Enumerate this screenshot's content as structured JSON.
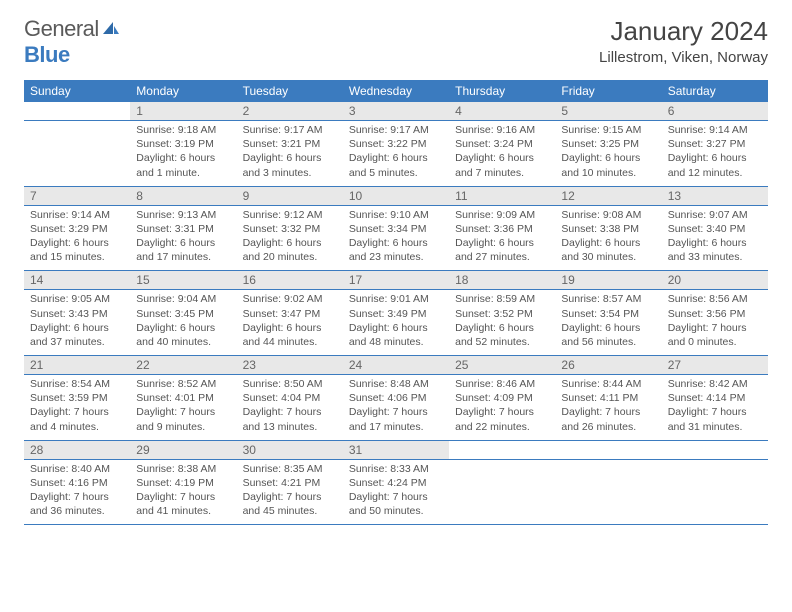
{
  "logo": {
    "text1": "General",
    "text2": "Blue"
  },
  "title": "January 2024",
  "location": "Lillestrom, Viken, Norway",
  "colors": {
    "header_bg": "#3b7bbf",
    "header_text": "#ffffff",
    "daynum_bg": "#e8e8e8",
    "daynum_text": "#666666",
    "body_text": "#555555",
    "rule": "#3b7bbf",
    "logo_gray": "#5a5a5a",
    "logo_blue": "#3b7bbf"
  },
  "weekdays": [
    "Sunday",
    "Monday",
    "Tuesday",
    "Wednesday",
    "Thursday",
    "Friday",
    "Saturday"
  ],
  "weeks": [
    {
      "nums": [
        "",
        "1",
        "2",
        "3",
        "4",
        "5",
        "6"
      ],
      "cells": [
        null,
        {
          "sunrise": "Sunrise: 9:18 AM",
          "sunset": "Sunset: 3:19 PM",
          "daylight": "Daylight: 6 hours and 1 minute."
        },
        {
          "sunrise": "Sunrise: 9:17 AM",
          "sunset": "Sunset: 3:21 PM",
          "daylight": "Daylight: 6 hours and 3 minutes."
        },
        {
          "sunrise": "Sunrise: 9:17 AM",
          "sunset": "Sunset: 3:22 PM",
          "daylight": "Daylight: 6 hours and 5 minutes."
        },
        {
          "sunrise": "Sunrise: 9:16 AM",
          "sunset": "Sunset: 3:24 PM",
          "daylight": "Daylight: 6 hours and 7 minutes."
        },
        {
          "sunrise": "Sunrise: 9:15 AM",
          "sunset": "Sunset: 3:25 PM",
          "daylight": "Daylight: 6 hours and 10 minutes."
        },
        {
          "sunrise": "Sunrise: 9:14 AM",
          "sunset": "Sunset: 3:27 PM",
          "daylight": "Daylight: 6 hours and 12 minutes."
        }
      ]
    },
    {
      "nums": [
        "7",
        "8",
        "9",
        "10",
        "11",
        "12",
        "13"
      ],
      "cells": [
        {
          "sunrise": "Sunrise: 9:14 AM",
          "sunset": "Sunset: 3:29 PM",
          "daylight": "Daylight: 6 hours and 15 minutes."
        },
        {
          "sunrise": "Sunrise: 9:13 AM",
          "sunset": "Sunset: 3:31 PM",
          "daylight": "Daylight: 6 hours and 17 minutes."
        },
        {
          "sunrise": "Sunrise: 9:12 AM",
          "sunset": "Sunset: 3:32 PM",
          "daylight": "Daylight: 6 hours and 20 minutes."
        },
        {
          "sunrise": "Sunrise: 9:10 AM",
          "sunset": "Sunset: 3:34 PM",
          "daylight": "Daylight: 6 hours and 23 minutes."
        },
        {
          "sunrise": "Sunrise: 9:09 AM",
          "sunset": "Sunset: 3:36 PM",
          "daylight": "Daylight: 6 hours and 27 minutes."
        },
        {
          "sunrise": "Sunrise: 9:08 AM",
          "sunset": "Sunset: 3:38 PM",
          "daylight": "Daylight: 6 hours and 30 minutes."
        },
        {
          "sunrise": "Sunrise: 9:07 AM",
          "sunset": "Sunset: 3:40 PM",
          "daylight": "Daylight: 6 hours and 33 minutes."
        }
      ]
    },
    {
      "nums": [
        "14",
        "15",
        "16",
        "17",
        "18",
        "19",
        "20"
      ],
      "cells": [
        {
          "sunrise": "Sunrise: 9:05 AM",
          "sunset": "Sunset: 3:43 PM",
          "daylight": "Daylight: 6 hours and 37 minutes."
        },
        {
          "sunrise": "Sunrise: 9:04 AM",
          "sunset": "Sunset: 3:45 PM",
          "daylight": "Daylight: 6 hours and 40 minutes."
        },
        {
          "sunrise": "Sunrise: 9:02 AM",
          "sunset": "Sunset: 3:47 PM",
          "daylight": "Daylight: 6 hours and 44 minutes."
        },
        {
          "sunrise": "Sunrise: 9:01 AM",
          "sunset": "Sunset: 3:49 PM",
          "daylight": "Daylight: 6 hours and 48 minutes."
        },
        {
          "sunrise": "Sunrise: 8:59 AM",
          "sunset": "Sunset: 3:52 PM",
          "daylight": "Daylight: 6 hours and 52 minutes."
        },
        {
          "sunrise": "Sunrise: 8:57 AM",
          "sunset": "Sunset: 3:54 PM",
          "daylight": "Daylight: 6 hours and 56 minutes."
        },
        {
          "sunrise": "Sunrise: 8:56 AM",
          "sunset": "Sunset: 3:56 PM",
          "daylight": "Daylight: 7 hours and 0 minutes."
        }
      ]
    },
    {
      "nums": [
        "21",
        "22",
        "23",
        "24",
        "25",
        "26",
        "27"
      ],
      "cells": [
        {
          "sunrise": "Sunrise: 8:54 AM",
          "sunset": "Sunset: 3:59 PM",
          "daylight": "Daylight: 7 hours and 4 minutes."
        },
        {
          "sunrise": "Sunrise: 8:52 AM",
          "sunset": "Sunset: 4:01 PM",
          "daylight": "Daylight: 7 hours and 9 minutes."
        },
        {
          "sunrise": "Sunrise: 8:50 AM",
          "sunset": "Sunset: 4:04 PM",
          "daylight": "Daylight: 7 hours and 13 minutes."
        },
        {
          "sunrise": "Sunrise: 8:48 AM",
          "sunset": "Sunset: 4:06 PM",
          "daylight": "Daylight: 7 hours and 17 minutes."
        },
        {
          "sunrise": "Sunrise: 8:46 AM",
          "sunset": "Sunset: 4:09 PM",
          "daylight": "Daylight: 7 hours and 22 minutes."
        },
        {
          "sunrise": "Sunrise: 8:44 AM",
          "sunset": "Sunset: 4:11 PM",
          "daylight": "Daylight: 7 hours and 26 minutes."
        },
        {
          "sunrise": "Sunrise: 8:42 AM",
          "sunset": "Sunset: 4:14 PM",
          "daylight": "Daylight: 7 hours and 31 minutes."
        }
      ]
    },
    {
      "nums": [
        "28",
        "29",
        "30",
        "31",
        "",
        "",
        ""
      ],
      "cells": [
        {
          "sunrise": "Sunrise: 8:40 AM",
          "sunset": "Sunset: 4:16 PM",
          "daylight": "Daylight: 7 hours and 36 minutes."
        },
        {
          "sunrise": "Sunrise: 8:38 AM",
          "sunset": "Sunset: 4:19 PM",
          "daylight": "Daylight: 7 hours and 41 minutes."
        },
        {
          "sunrise": "Sunrise: 8:35 AM",
          "sunset": "Sunset: 4:21 PM",
          "daylight": "Daylight: 7 hours and 45 minutes."
        },
        {
          "sunrise": "Sunrise: 8:33 AM",
          "sunset": "Sunset: 4:24 PM",
          "daylight": "Daylight: 7 hours and 50 minutes."
        },
        null,
        null,
        null
      ]
    }
  ]
}
